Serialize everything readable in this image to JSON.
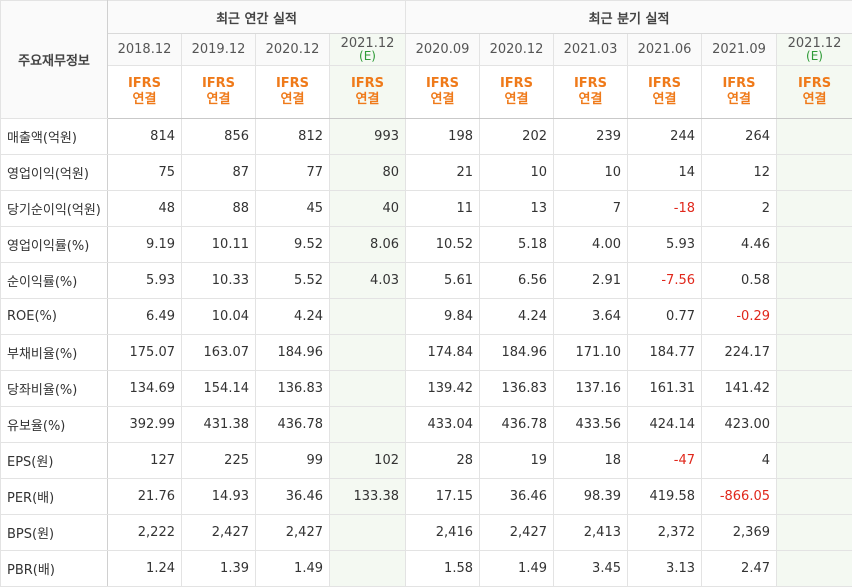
{
  "header": {
    "row_title": "주요재무정보",
    "annual_title": "최근 연간 실적",
    "quarter_title": "최근 분기 실적"
  },
  "periods": [
    {
      "label": "2018.12",
      "sub": "",
      "type": "IFRS",
      "basis": "연결",
      "estimate": false
    },
    {
      "label": "2019.12",
      "sub": "",
      "type": "IFRS",
      "basis": "연결",
      "estimate": false
    },
    {
      "label": "2020.12",
      "sub": "",
      "type": "IFRS",
      "basis": "연결",
      "estimate": false
    },
    {
      "label": "2021.12",
      "sub": "(E)",
      "type": "IFRS",
      "basis": "연결",
      "estimate": true
    },
    {
      "label": "2020.09",
      "sub": "",
      "type": "IFRS",
      "basis": "연결",
      "estimate": false
    },
    {
      "label": "2020.12",
      "sub": "",
      "type": "IFRS",
      "basis": "연결",
      "estimate": false
    },
    {
      "label": "2021.03",
      "sub": "",
      "type": "IFRS",
      "basis": "연결",
      "estimate": false
    },
    {
      "label": "2021.06",
      "sub": "",
      "type": "IFRS",
      "basis": "연결",
      "estimate": false
    },
    {
      "label": "2021.09",
      "sub": "",
      "type": "IFRS",
      "basis": "연결",
      "estimate": false
    },
    {
      "label": "2021.12",
      "sub": "(E)",
      "type": "IFRS",
      "basis": "연결",
      "estimate": true
    }
  ],
  "rows": [
    {
      "label": "매출액(억원)",
      "values": [
        "814",
        "856",
        "812",
        "993",
        "198",
        "202",
        "239",
        "244",
        "264",
        ""
      ]
    },
    {
      "label": "영업이익(억원)",
      "values": [
        "75",
        "87",
        "77",
        "80",
        "21",
        "10",
        "10",
        "14",
        "12",
        ""
      ]
    },
    {
      "label": "당기순이익(억원)",
      "values": [
        "48",
        "88",
        "45",
        "40",
        "11",
        "13",
        "7",
        "-18",
        "2",
        ""
      ]
    },
    {
      "label": "영업이익률(%)",
      "values": [
        "9.19",
        "10.11",
        "9.52",
        "8.06",
        "10.52",
        "5.18",
        "4.00",
        "5.93",
        "4.46",
        ""
      ]
    },
    {
      "label": "순이익률(%)",
      "values": [
        "5.93",
        "10.33",
        "5.52",
        "4.03",
        "5.61",
        "6.56",
        "2.91",
        "-7.56",
        "0.58",
        ""
      ]
    },
    {
      "label": "ROE(%)",
      "values": [
        "6.49",
        "10.04",
        "4.24",
        "",
        "9.84",
        "4.24",
        "3.64",
        "0.77",
        "-0.29",
        ""
      ]
    },
    {
      "label": "부채비율(%)",
      "values": [
        "175.07",
        "163.07",
        "184.96",
        "",
        "174.84",
        "184.96",
        "171.10",
        "184.77",
        "224.17",
        ""
      ]
    },
    {
      "label": "당좌비율(%)",
      "values": [
        "134.69",
        "154.14",
        "136.83",
        "",
        "139.42",
        "136.83",
        "137.16",
        "161.31",
        "141.42",
        ""
      ]
    },
    {
      "label": "유보율(%)",
      "values": [
        "392.99",
        "431.38",
        "436.78",
        "",
        "433.04",
        "436.78",
        "433.56",
        "424.14",
        "423.00",
        ""
      ]
    },
    {
      "label": "EPS(원)",
      "values": [
        "127",
        "225",
        "99",
        "102",
        "28",
        "19",
        "18",
        "-47",
        "4",
        ""
      ]
    },
    {
      "label": "PER(배)",
      "values": [
        "21.76",
        "14.93",
        "36.46",
        "133.38",
        "17.15",
        "36.46",
        "98.39",
        "419.58",
        "-866.05",
        ""
      ]
    },
    {
      "label": "BPS(원)",
      "values": [
        "2,222",
        "2,427",
        "2,427",
        "",
        "2,416",
        "2,427",
        "2,413",
        "2,372",
        "2,369",
        ""
      ]
    },
    {
      "label": "PBR(배)",
      "values": [
        "1.24",
        "1.39",
        "1.49",
        "",
        "1.58",
        "1.49",
        "3.45",
        "3.13",
        "2.47",
        ""
      ]
    }
  ],
  "colors": {
    "ifrs": "#ef7a1a",
    "negative": "#e0271b",
    "estimate_bg": "#f4f9f2",
    "estimate_text": "#2e9b37"
  }
}
